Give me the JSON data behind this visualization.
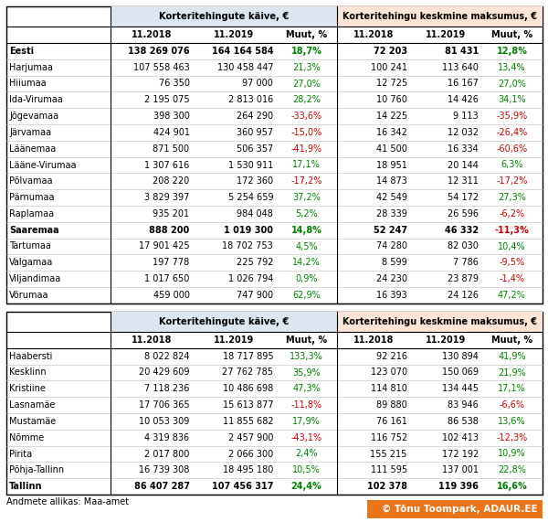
{
  "table1_rows": [
    [
      "Eesti",
      "138 269 076",
      "164 164 584",
      "18,7%",
      "72 203",
      "81 431",
      "12,8%"
    ],
    [
      "Harjumaa",
      "107 558 463",
      "130 458 447",
      "21,3%",
      "100 241",
      "113 640",
      "13,4%"
    ],
    [
      "Hiiumaa",
      "76 350",
      "97 000",
      "27,0%",
      "12 725",
      "16 167",
      "27,0%"
    ],
    [
      "Ida-Virumaa",
      "2 195 075",
      "2 813 016",
      "28,2%",
      "10 760",
      "14 426",
      "34,1%"
    ],
    [
      "Jõgevamaa",
      "398 300",
      "264 290",
      "-33,6%",
      "14 225",
      "9 113",
      "-35,9%"
    ],
    [
      "Järvamaa",
      "424 901",
      "360 957",
      "-15,0%",
      "16 342",
      "12 032",
      "-26,4%"
    ],
    [
      "Läänemaa",
      "871 500",
      "506 357",
      "-41,9%",
      "41 500",
      "16 334",
      "-60,6%"
    ],
    [
      "Lääne-Virumaa",
      "1 307 616",
      "1 530 911",
      "17,1%",
      "18 951",
      "20 144",
      "6,3%"
    ],
    [
      "Põlvamaa",
      "208 220",
      "172 360",
      "-17,2%",
      "14 873",
      "12 311",
      "-17,2%"
    ],
    [
      "Pärnumaa",
      "3 829 397",
      "5 254 659",
      "37,2%",
      "42 549",
      "54 172",
      "27,3%"
    ],
    [
      "Raplamaa",
      "935 201",
      "984 048",
      "5,2%",
      "28 339",
      "26 596",
      "-6,2%"
    ],
    [
      "Saaremaa",
      "888 200",
      "1 019 300",
      "14,8%",
      "52 247",
      "46 332",
      "-11,3%"
    ],
    [
      "Tartumaa",
      "17 901 425",
      "18 702 753",
      "4,5%",
      "74 280",
      "82 030",
      "10,4%"
    ],
    [
      "Valgamaa",
      "197 778",
      "225 792",
      "14,2%",
      "8 599",
      "7 786",
      "-9,5%"
    ],
    [
      "Viljandimaa",
      "1 017 650",
      "1 026 794",
      "0,9%",
      "24 230",
      "23 879",
      "-1,4%"
    ],
    [
      "Võrumaa",
      "459 000",
      "747 900",
      "62,9%",
      "16 393",
      "24 126",
      "47,2%"
    ]
  ],
  "table1_bold_rows": [
    0,
    11
  ],
  "table2_rows": [
    [
      "Haabersti",
      "8 022 824",
      "18 717 895",
      "133,3%",
      "92 216",
      "130 894",
      "41,9%"
    ],
    [
      "Kesklinn",
      "20 429 609",
      "27 762 785",
      "35,9%",
      "123 070",
      "150 069",
      "21,9%"
    ],
    [
      "Kristiine",
      "7 118 236",
      "10 486 698",
      "47,3%",
      "114 810",
      "134 445",
      "17,1%"
    ],
    [
      "Lasnamäe",
      "17 706 365",
      "15 613 877",
      "-11,8%",
      "89 880",
      "83 946",
      "-6,6%"
    ],
    [
      "Mustamäe",
      "10 053 309",
      "11 855 682",
      "17,9%",
      "76 161",
      "86 538",
      "13,6%"
    ],
    [
      "Nõmme",
      "4 319 836",
      "2 457 900",
      "-43,1%",
      "116 752",
      "102 413",
      "-12,3%"
    ],
    [
      "Pirita",
      "2 017 800",
      "2 066 300",
      "2,4%",
      "155 215",
      "172 192",
      "10,9%"
    ],
    [
      "Põhja-Tallinn",
      "16 739 308",
      "18 495 180",
      "10,5%",
      "111 595",
      "137 001",
      "22,8%"
    ],
    [
      "Tallinn",
      "86 407 287",
      "107 456 317",
      "24,4%",
      "102 378",
      "119 396",
      "16,6%"
    ]
  ],
  "table2_bold_rows": [
    8
  ],
  "footer": "Andmete allikas: Maa-amet",
  "watermark": "© Tõnu Toompark, ADAUR.EE",
  "positive_color": "#008000",
  "negative_color": "#cc0000",
  "header1_text": "Korteritehingute käive, €",
  "header2_text": "Korteritehingu keskmine maksumus, €",
  "subheader_cols": [
    "11.2018",
    "11.2019",
    "Muut, %",
    "11.2018",
    "11.2019",
    "Muut, %"
  ]
}
